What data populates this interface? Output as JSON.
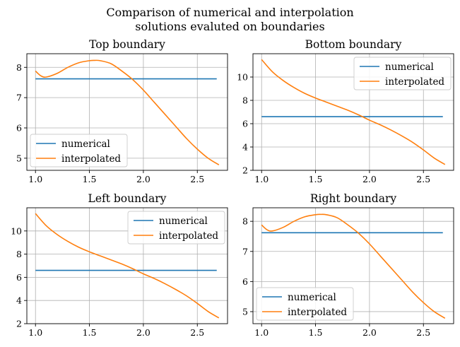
{
  "figure": {
    "title_line1": "Comparison of numerical and interpolation",
    "title_line2": "solutions evaluted on boundaries"
  },
  "colors": {
    "numerical": "#1f77b4",
    "interpolated": "#ff7f0e",
    "grid": "#b0b0b0"
  },
  "chart_data": [
    {
      "type": "line",
      "title": "Top boundary",
      "xlim": [
        0.92,
        2.78
      ],
      "ylim": [
        4.6,
        8.45
      ],
      "xticks": [
        1.0,
        1.5,
        2.0,
        2.5
      ],
      "xtick_labels": [
        "1.0",
        "1.5",
        "2.0",
        "2.5"
      ],
      "yticks": [
        5,
        6,
        7,
        8
      ],
      "ytick_labels": [
        "5",
        "6",
        "7",
        "8"
      ],
      "grid": true,
      "legend_position": "lower-left",
      "series": [
        {
          "name": "numerical",
          "x": [
            1.0,
            2.68
          ],
          "y": [
            7.62,
            7.62
          ]
        },
        {
          "name": "interpolated",
          "x": [
            1.0,
            1.05,
            1.1,
            1.2,
            1.3,
            1.4,
            1.5,
            1.55,
            1.6,
            1.7,
            1.8,
            1.9,
            2.0,
            2.1,
            2.2,
            2.3,
            2.4,
            2.5,
            2.6,
            2.7
          ],
          "y": [
            7.88,
            7.72,
            7.68,
            7.8,
            8.0,
            8.15,
            8.22,
            8.23,
            8.22,
            8.12,
            7.88,
            7.6,
            7.25,
            6.85,
            6.45,
            6.05,
            5.65,
            5.3,
            5.0,
            4.78
          ]
        }
      ]
    },
    {
      "type": "line",
      "title": "Bottom boundary",
      "xlim": [
        0.92,
        2.78
      ],
      "ylim": [
        2.0,
        12.0
      ],
      "xticks": [
        1.0,
        1.5,
        2.0,
        2.5
      ],
      "xtick_labels": [
        "1.0",
        "1.5",
        "2.0",
        "2.5"
      ],
      "yticks": [
        2,
        4,
        6,
        8,
        10
      ],
      "ytick_labels": [
        "2",
        "4",
        "6",
        "8",
        "10"
      ],
      "grid": true,
      "legend_position": "upper-right",
      "series": [
        {
          "name": "numerical",
          "x": [
            1.0,
            2.68
          ],
          "y": [
            6.6,
            6.6
          ]
        },
        {
          "name": "interpolated",
          "x": [
            1.0,
            1.1,
            1.2,
            1.3,
            1.4,
            1.5,
            1.6,
            1.7,
            1.8,
            1.9,
            2.0,
            2.1,
            2.2,
            2.3,
            2.4,
            2.5,
            2.6,
            2.7
          ],
          "y": [
            11.5,
            10.45,
            9.7,
            9.1,
            8.6,
            8.2,
            7.85,
            7.5,
            7.15,
            6.75,
            6.3,
            5.9,
            5.45,
            4.95,
            4.4,
            3.75,
            3.05,
            2.5
          ]
        }
      ]
    },
    {
      "type": "line",
      "title": "Left boundary",
      "xlim": [
        0.92,
        2.78
      ],
      "ylim": [
        2.0,
        12.0
      ],
      "xticks": [
        1.0,
        1.5,
        2.0,
        2.5
      ],
      "xtick_labels": [
        "1.0",
        "1.5",
        "2.0",
        "2.5"
      ],
      "yticks": [
        2,
        4,
        6,
        8,
        10
      ],
      "ytick_labels": [
        "2",
        "4",
        "6",
        "8",
        "10"
      ],
      "grid": true,
      "legend_position": "upper-right",
      "series": [
        {
          "name": "numerical",
          "x": [
            1.0,
            2.68
          ],
          "y": [
            6.6,
            6.6
          ]
        },
        {
          "name": "interpolated",
          "x": [
            1.0,
            1.1,
            1.2,
            1.3,
            1.4,
            1.5,
            1.6,
            1.7,
            1.8,
            1.9,
            2.0,
            2.1,
            2.2,
            2.3,
            2.4,
            2.5,
            2.6,
            2.7
          ],
          "y": [
            11.5,
            10.45,
            9.7,
            9.1,
            8.6,
            8.2,
            7.85,
            7.5,
            7.15,
            6.75,
            6.3,
            5.9,
            5.45,
            4.95,
            4.4,
            3.75,
            3.05,
            2.5
          ]
        }
      ]
    },
    {
      "type": "line",
      "title": "Right boundary",
      "xlim": [
        0.92,
        2.78
      ],
      "ylim": [
        4.6,
        8.45
      ],
      "xticks": [
        1.0,
        1.5,
        2.0,
        2.5
      ],
      "xtick_labels": [
        "1.0",
        "1.5",
        "2.0",
        "2.5"
      ],
      "yticks": [
        5,
        6,
        7,
        8
      ],
      "ytick_labels": [
        "5",
        "6",
        "7",
        "8"
      ],
      "grid": true,
      "legend_position": "lower-left",
      "series": [
        {
          "name": "numerical",
          "x": [
            1.0,
            2.68
          ],
          "y": [
            7.62,
            7.62
          ]
        },
        {
          "name": "interpolated",
          "x": [
            1.0,
            1.05,
            1.1,
            1.2,
            1.3,
            1.4,
            1.5,
            1.55,
            1.6,
            1.7,
            1.8,
            1.9,
            2.0,
            2.1,
            2.2,
            2.3,
            2.4,
            2.5,
            2.6,
            2.7
          ],
          "y": [
            7.88,
            7.72,
            7.68,
            7.8,
            8.0,
            8.15,
            8.22,
            8.23,
            8.22,
            8.12,
            7.88,
            7.6,
            7.25,
            6.85,
            6.45,
            6.05,
            5.65,
            5.3,
            5.0,
            4.78
          ]
        }
      ]
    }
  ]
}
